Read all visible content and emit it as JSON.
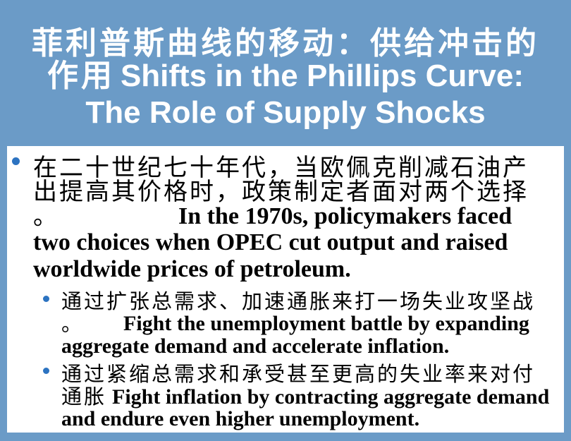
{
  "theme": {
    "band": "#6b9bc7",
    "title_text": "#ffffff",
    "bullet": "#2c73c1",
    "text": "#000000"
  },
  "title": {
    "lines": [
      {
        "zh": "菲利普斯曲线的移动：供给冲击的"
      },
      {
        "zh": "作用",
        "en": "Shifts in the Phillips Curve:"
      },
      {
        "en": "The Role of Supply Shocks"
      }
    ]
  },
  "body": {
    "bullets": [
      {
        "lines": [
          {
            "zh": "在二十世纪七十年代，当欧佩克削减石油产"
          },
          {
            "zh": "出提高其价格时，政策制定者面对两个选择"
          },
          {
            "zh": "。",
            "en": "In the 1970s, policymakers faced"
          },
          {
            "en": "two choices when OPEC cut output and raised"
          },
          {
            "en": "worldwide prices of petroleum."
          }
        ],
        "sub_bullets": [
          {
            "lines": [
              {
                "zh": "通过扩张总需求、加速通胀来打一场失业攻坚战"
              },
              {
                "zh": "。",
                "en": "Fight the unemployment battle by expanding"
              },
              {
                "en": "aggregate demand and accelerate inflation."
              }
            ]
          },
          {
            "lines": [
              {
                "zh": "通过紧缩总需求和承受甚至更高的失业率来对付"
              },
              {
                "zh": "通胀",
                "en": "Fight inflation by contracting aggregate demand"
              },
              {
                "en": "and endure even higher unemployment."
              }
            ]
          }
        ]
      }
    ]
  }
}
